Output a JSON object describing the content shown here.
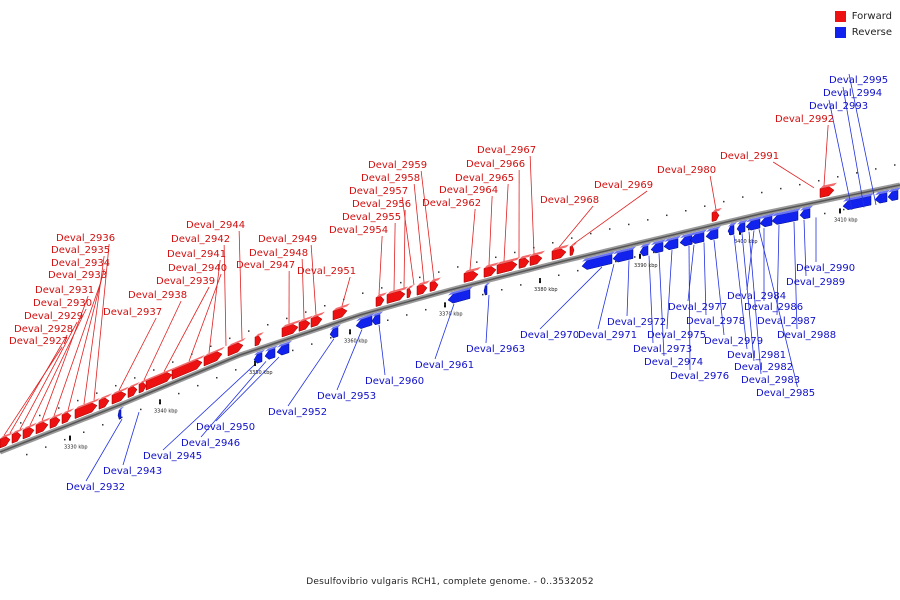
{
  "legend": {
    "forward_label": "Forward",
    "reverse_label": "Reverse",
    "forward_color": "#ee1111",
    "reverse_color": "#1122ee"
  },
  "caption": "Desulfovibrio vulgaris RCH1, complete genome. - 0..3532052",
  "scale_labels": [
    "3330 kbp",
    "3340 kbp",
    "3350 kbp",
    "3360 kbp",
    "3370 kbp",
    "3380 kbp",
    "3390 kbp",
    "3400 kbp",
    "3410 kbp"
  ],
  "genes_forward": [
    "Deval_2927",
    "Deval_2928",
    "Deval_2929",
    "Deval_2930",
    "Deval_2931",
    "Deval_2933",
    "Deval_2934",
    "Deval_2935",
    "Deval_2936",
    "Deval_2937",
    "Deval_2938",
    "Deval_2939",
    "Deval_2940",
    "Deval_2941",
    "Deval_2942",
    "Deval_2944",
    "Deval_2947",
    "Deval_2948",
    "Deval_2949",
    "Deval_2951",
    "Deval_2954",
    "Deval_2955",
    "Deval_2956",
    "Deval_2957",
    "Deval_2958",
    "Deval_2959",
    "Deval_2962",
    "Deval_2964",
    "Deval_2965",
    "Deval_2966",
    "Deval_2967",
    "Deval_2968",
    "Deval_2969",
    "Deval_2980",
    "Deval_2991",
    "Deval_2992"
  ],
  "genes_reverse": [
    "Deval_2932",
    "Deval_2943",
    "Deval_2945",
    "Deval_2946",
    "Deval_2950",
    "Deval_2952",
    "Deval_2953",
    "Deval_2960",
    "Deval_2961",
    "Deval_2963",
    "Deval_2970",
    "Deval_2971",
    "Deval_2972",
    "Deval_2973",
    "Deval_2974",
    "Deval_2975",
    "Deval_2976",
    "Deval_2977",
    "Deval_2978",
    "Deval_2979",
    "Deval_2981",
    "Deval_2982",
    "Deval_2983",
    "Deval_2984",
    "Deval_2985",
    "Deval_2986",
    "Deval_2987",
    "Deval_2988",
    "Deval_2989",
    "Deval_2990",
    "Deval_2993",
    "Deval_2994",
    "Deval_2995"
  ]
}
